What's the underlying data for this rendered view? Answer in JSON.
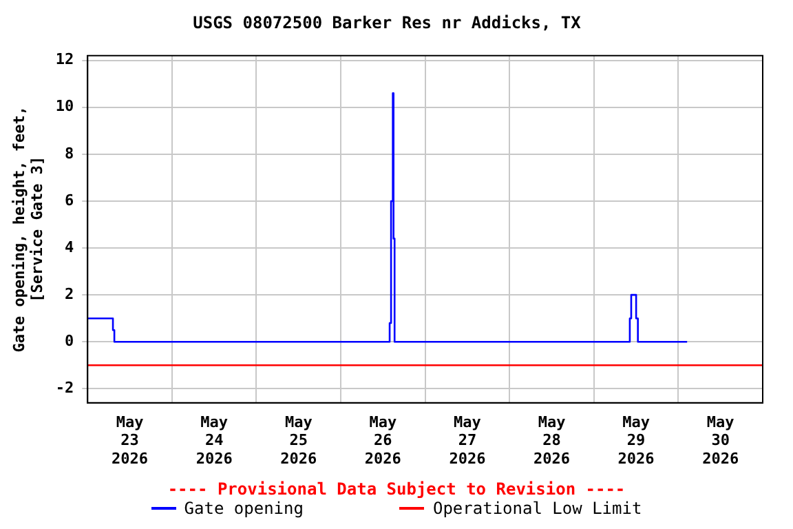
{
  "chart_data": {
    "type": "step",
    "title": "USGS 08072500 Barker Res nr Addicks, TX",
    "ylabel": "Gate opening, height, feet, [Service Gate 3]",
    "annotations": [
      "---- Provisional Data Subject to Revision ----"
    ],
    "series": [
      {
        "name": "Gate opening",
        "type": "step",
        "color": "#0000ff",
        "x": [
          "2026-05-23T00:00",
          "2026-05-23T07:12",
          "2026-05-23T07:36",
          "2026-05-26T13:54",
          "2026-05-26T14:18",
          "2026-05-26T14:48",
          "2026-05-26T15:00",
          "2026-05-26T15:18",
          "2026-05-29T10:12",
          "2026-05-29T10:36",
          "2026-05-29T12:00",
          "2026-05-29T12:30",
          "2026-05-30T02:30"
        ],
        "values": [
          1.0,
          0.5,
          0,
          0.8,
          6.0,
          10.6,
          4.4,
          0,
          1.0,
          2.0,
          1.0,
          0,
          0
        ]
      },
      {
        "name": "Operational Low Limit",
        "type": "line",
        "color": "#ff0000",
        "x": [
          "2026-05-23T00:00",
          "2026-05-31T00:00"
        ],
        "values": [
          -1,
          -1
        ]
      }
    ],
    "xlim": [
      "2026-05-23T00:00",
      "2026-05-31T00:00"
    ],
    "xticks": [
      {
        "value": "2026-05-23T00:00",
        "label": null
      },
      {
        "value": "2026-05-23T12:00",
        "label": "May\n23\n2026"
      },
      {
        "value": "2026-05-24T00:00",
        "label": null
      },
      {
        "value": "2026-05-24T12:00",
        "label": "May\n24\n2026"
      },
      {
        "value": "2026-05-25T00:00",
        "label": null
      },
      {
        "value": "2026-05-25T12:00",
        "label": "May\n25\n2026"
      },
      {
        "value": "2026-05-26T00:00",
        "label": null
      },
      {
        "value": "2026-05-26T12:00",
        "label": "May\n26\n2026"
      },
      {
        "value": "2026-05-27T00:00",
        "label": null
      },
      {
        "value": "2026-05-27T12:00",
        "label": "May\n27\n2026"
      },
      {
        "value": "2026-05-28T00:00",
        "label": null
      },
      {
        "value": "2026-05-28T12:00",
        "label": "May\n28\n2026"
      },
      {
        "value": "2026-05-29T00:00",
        "label": null
      },
      {
        "value": "2026-05-29T12:00",
        "label": "May\n29\n2026"
      },
      {
        "value": "2026-05-30T00:00",
        "label": null
      },
      {
        "value": "2026-05-30T12:00",
        "label": "May\n30\n2026"
      },
      {
        "value": "2026-05-31T00:00",
        "label": null
      }
    ],
    "ylim": [
      -2.6,
      12.2
    ],
    "yticks": [
      -2,
      0,
      2,
      4,
      6,
      8,
      10,
      12
    ],
    "grid": true,
    "legend": "bottom",
    "marker": "none",
    "line_style": "solid"
  }
}
